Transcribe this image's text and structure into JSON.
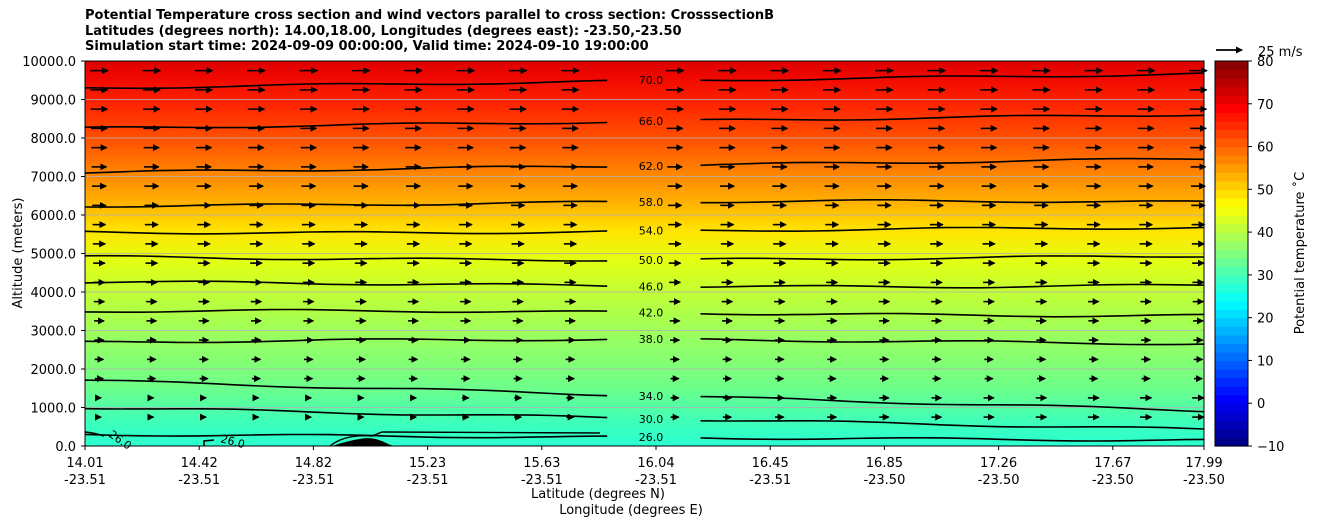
{
  "chart_data": {
    "type": "contour",
    "title_lines": [
      "Potential Temperature cross section and wind vectors parallel to cross section: CrosssectionB",
      "Latitudes (degrees north): 14.00,18.00, Longitudes (degrees east): -23.50,-23.50",
      "Simulation start time: 2024-09-09 00:00:00, Valid time: 2024-09-10 19:00:00"
    ],
    "xlabel_lines": [
      "Latitude (degrees N)",
      "Longitude (degrees E)"
    ],
    "ylabel": "Altitude (meters)",
    "x_ticks": [
      {
        "lat": "14.01",
        "lon": "-23.51"
      },
      {
        "lat": "14.42",
        "lon": "-23.51"
      },
      {
        "lat": "14.82",
        "lon": "-23.51"
      },
      {
        "lat": "15.23",
        "lon": "-23.51"
      },
      {
        "lat": "15.63",
        "lon": "-23.51"
      },
      {
        "lat": "16.04",
        "lon": "-23.51"
      },
      {
        "lat": "16.45",
        "lon": "-23.51"
      },
      {
        "lat": "16.85",
        "lon": "-23.50"
      },
      {
        "lat": "17.26",
        "lon": "-23.50"
      },
      {
        "lat": "17.67",
        "lon": "-23.50"
      },
      {
        "lat": "17.99",
        "lon": "-23.50"
      }
    ],
    "y_ticks": [
      "0.0",
      "1000.0",
      "2000.0",
      "3000.0",
      "4000.0",
      "5000.0",
      "6000.0",
      "7000.0",
      "8000.0",
      "9000.0",
      "10000.0"
    ],
    "ylim": [
      0,
      10000
    ],
    "grid": "horizontal",
    "colorbar": {
      "label": "Potential temperature ˚C",
      "range": [
        -10,
        80
      ],
      "ticks": [
        "−10",
        "0",
        "10",
        "20",
        "30",
        "40",
        "50",
        "60",
        "70",
        "80"
      ],
      "colormap": "jet"
    },
    "wind_key": {
      "label": "25 m/s",
      "speed": 25
    },
    "contours": [
      {
        "value": 26.0,
        "label": "26.0",
        "altitude_m": 300
      },
      {
        "value": 30.0,
        "label": "30.0",
        "altitude_m": 1000
      },
      {
        "value": 34.0,
        "label": "34.0",
        "altitude_m": 1700
      },
      {
        "value": 38.0,
        "label": "38.0",
        "altitude_m": 2700
      },
      {
        "value": 42.0,
        "label": "42.0",
        "altitude_m": 3450
      },
      {
        "value": 46.0,
        "label": "46.0",
        "altitude_m": 4200
      },
      {
        "value": 50.0,
        "label": "50.0",
        "altitude_m": 4900
      },
      {
        "value": 54.0,
        "label": "54.0",
        "altitude_m": 5600
      },
      {
        "value": 58.0,
        "label": "58.0",
        "altitude_m": 6300
      },
      {
        "value": 62.0,
        "label": "62.0",
        "altitude_m": 7100
      },
      {
        "value": 66.0,
        "label": "66.0",
        "altitude_m": 8250
      },
      {
        "value": 70.0,
        "label": "70.0",
        "altitude_m": 9300
      }
    ],
    "contour_side_labels": [
      "26.0",
      "26.0"
    ]
  }
}
